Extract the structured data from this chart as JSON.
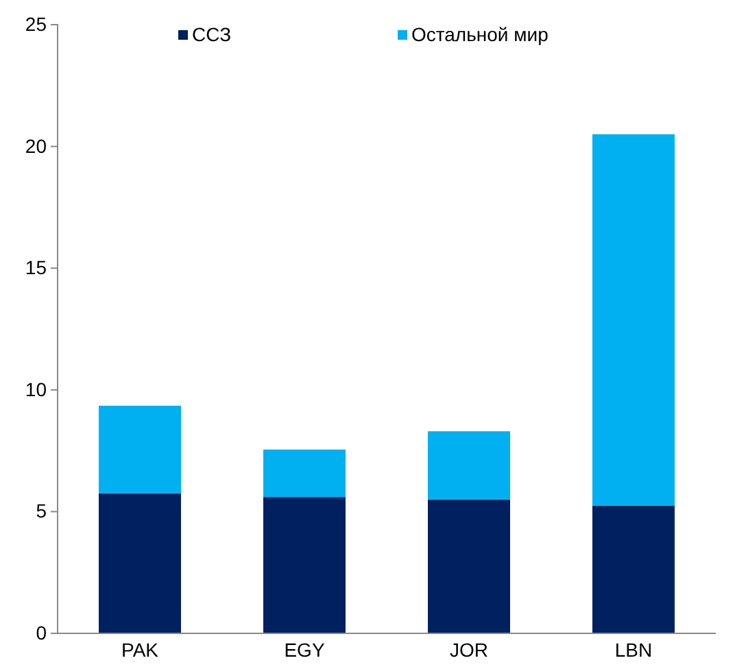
{
  "chart_data": {
    "type": "bar",
    "stacked": true,
    "categories": [
      "PAK",
      "EGY",
      "JOR",
      "LBN"
    ],
    "series": [
      {
        "name": "ССЗ",
        "color": "#002060",
        "values": [
          5.75,
          5.6,
          5.5,
          5.25
        ]
      },
      {
        "name": "Остальной мир",
        "color": "#00b0f0",
        "values": [
          3.6,
          1.95,
          2.8,
          15.25
        ]
      }
    ],
    "ylim": [
      0,
      25
    ],
    "yticks": [
      0,
      5,
      10,
      15,
      20,
      25
    ],
    "grid": false,
    "legend": "top"
  }
}
